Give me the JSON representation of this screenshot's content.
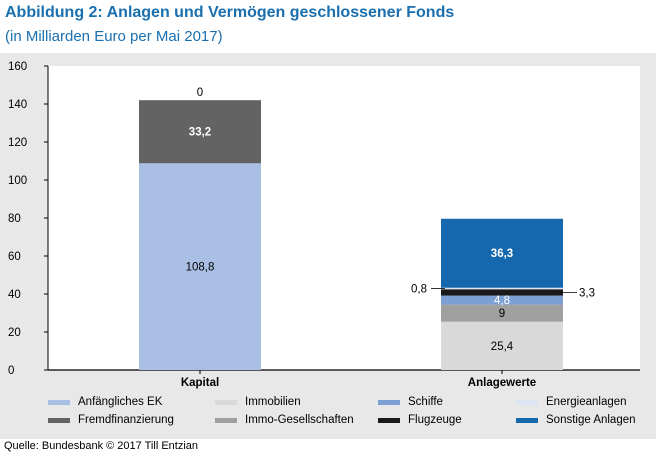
{
  "title": "Abbildung 2: Anlagen und Vermögen geschlossener Fonds",
  "subtitle": "(in Milliarden Euro per Mai 2017)",
  "source": "Quelle: Bundesbank © 2017 Till Entzian",
  "chart_data": {
    "type": "bar",
    "stacked": true,
    "categories": [
      "Kapital",
      "Anlagewerte"
    ],
    "ylim": [
      0,
      160
    ],
    "yticks": [
      0,
      20,
      40,
      60,
      80,
      100,
      120,
      140,
      160
    ],
    "grid": false,
    "legend_position": "bottom",
    "series": [
      {
        "name": "Anfängliches EK",
        "color": "#a9bfe4",
        "values": [
          108.8,
          null
        ],
        "labels": [
          "108,8",
          ""
        ]
      },
      {
        "name": "Fremdfinanzierung",
        "color": "#636363",
        "values": [
          33.2,
          null
        ],
        "labels": [
          "33,2",
          ""
        ]
      },
      {
        "name": "Immobilien",
        "color": "#d9d9d9",
        "values": [
          null,
          25.4
        ],
        "labels": [
          "",
          "25,4"
        ]
      },
      {
        "name": "Immo-Gesellschaften",
        "color": "#a0a0a0",
        "values": [
          0,
          9
        ],
        "labels": [
          "0",
          "9"
        ]
      },
      {
        "name": "Schiffe",
        "color": "#7c9fd4",
        "values": [
          null,
          4.8
        ],
        "labels": [
          "",
          "4,8"
        ]
      },
      {
        "name": "Flugzeuge",
        "color": "#1a1a1a",
        "values": [
          null,
          3.3
        ],
        "labels": [
          "",
          "3,3"
        ]
      },
      {
        "name": "Energieanlagen",
        "color": "#dde5f3",
        "values": [
          null,
          0.8
        ],
        "labels": [
          "",
          "0,8"
        ]
      },
      {
        "name": "Sonstige Anlagen",
        "color": "#1568ad",
        "values": [
          null,
          36.3
        ],
        "labels": [
          "",
          "36,3"
        ]
      }
    ],
    "legend_order": [
      "Anfängliches EK",
      "Immobilien",
      "Schiffe",
      "Energieanlagen",
      "Fremdfinanzierung",
      "Immo-Gesellschaften",
      "Flugzeuge",
      "Sonstige Anlagen"
    ]
  }
}
